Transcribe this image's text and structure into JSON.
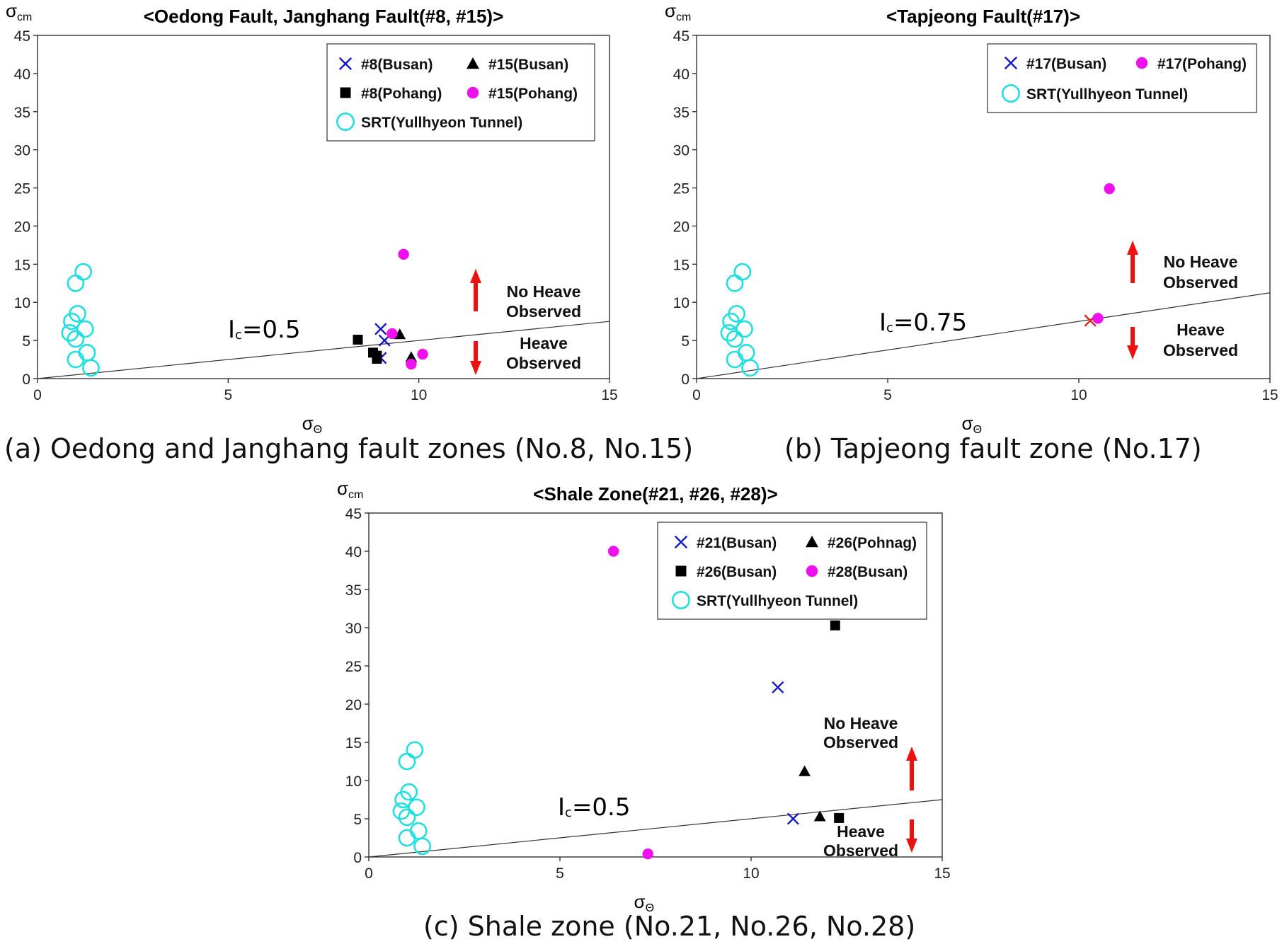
{
  "captions": [
    "(a) Oedong and Janghang fault zones (No.8, No.15)",
    "(b) Tapjeong fault zone (No.17)",
    "(c) Shale zone (No.21, No.26, No.28)"
  ],
  "colors": {
    "blue": "#1515c8",
    "black": "#000000",
    "magenta": "#ee11ee",
    "cyan": "#22dede",
    "red": "#ee1111",
    "cross_red": "#dd2222"
  },
  "chart_data": [
    {
      "type": "scatter",
      "title": "<Oedong Fault, Janghang Fault(#8, #15)>",
      "xlabel": "σ",
      "xlabel_sub": "Θ",
      "ylabel": "σ",
      "ylabel_sub": "cm",
      "xlim": [
        0,
        15
      ],
      "ylim": [
        0,
        45
      ],
      "xticks": [
        0,
        5,
        10,
        15
      ],
      "yticks": [
        0,
        5,
        10,
        15,
        20,
        25,
        30,
        35,
        40,
        45
      ],
      "legend": "top-right",
      "legend_columns": 2,
      "series": [
        {
          "name": "#8(Busan)",
          "marker": "x",
          "color": "#1515c8",
          "x": [
            9.0,
            9.1,
            9.0
          ],
          "y": [
            6.5,
            5.0,
            2.7
          ]
        },
        {
          "name": "#15(Busan)",
          "marker": "triangle",
          "color": "#000000",
          "x": [
            9.5,
            9.8
          ],
          "y": [
            5.8,
            2.8
          ]
        },
        {
          "name": "#8(Pohang)",
          "marker": "square",
          "color": "#000000",
          "x": [
            8.4,
            8.8,
            8.9,
            8.9
          ],
          "y": [
            5.1,
            3.4,
            3.0,
            2.6
          ]
        },
        {
          "name": "#15(Pohang)",
          "marker": "circle",
          "color": "#ee11ee",
          "x": [
            9.6,
            9.3,
            10.1,
            9.8
          ],
          "y": [
            16.3,
            5.9,
            3.2,
            1.9
          ]
        },
        {
          "name": "SRT(Yullhyeon Tunnel)",
          "marker": "open-circle",
          "color": "#22dede",
          "x": [
            1.2,
            1.0,
            1.05,
            0.9,
            0.85,
            1.25,
            1.0,
            1.0,
            1.3,
            1.4
          ],
          "y": [
            14.0,
            12.5,
            8.5,
            7.5,
            6.0,
            6.5,
            5.2,
            2.5,
            3.4,
            1.4
          ]
        }
      ],
      "reference_line": {
        "label": "I",
        "label_sub": "c",
        "label_value": "=0.5",
        "slope": 0.5
      },
      "annotations": {
        "above_label_1": "No Heave",
        "above_label_2": "Observed",
        "below_label_1": "Heave",
        "below_label_2": "Observed"
      }
    },
    {
      "type": "scatter",
      "title": "<Tapjeong Fault(#17)>",
      "xlabel": "σ",
      "xlabel_sub": "Θ",
      "ylabel": "σ",
      "ylabel_sub": "cm",
      "xlim": [
        0,
        15
      ],
      "ylim": [
        0,
        45
      ],
      "xticks": [
        0,
        5,
        10,
        15
      ],
      "yticks": [
        0,
        5,
        10,
        15,
        20,
        25,
        30,
        35,
        40,
        45
      ],
      "legend": "top-right",
      "legend_columns": 2,
      "series": [
        {
          "name": "#17(Busan)",
          "marker": "x",
          "color": "#1515c8",
          "point_color": "#dd2222",
          "x": [
            10.3
          ],
          "y": [
            7.6
          ]
        },
        {
          "name": "#17(Pohang)",
          "marker": "circle",
          "color": "#ee11ee",
          "x": [
            10.8,
            10.5
          ],
          "y": [
            24.9,
            7.9
          ]
        },
        {
          "name": "SRT(Yullhyeon Tunnel)",
          "marker": "open-circle",
          "color": "#22dede",
          "x": [
            1.2,
            1.0,
            1.05,
            0.9,
            0.85,
            1.25,
            1.0,
            1.0,
            1.3,
            1.4
          ],
          "y": [
            14.0,
            12.5,
            8.5,
            7.5,
            6.0,
            6.5,
            5.2,
            2.5,
            3.4,
            1.4
          ]
        }
      ],
      "reference_line": {
        "label": "I",
        "label_sub": "c",
        "label_value": "=0.75",
        "slope": 0.75
      },
      "annotations": {
        "above_label_1": "No Heave",
        "above_label_2": "Observed",
        "below_label_1": "Heave",
        "below_label_2": "Observed"
      }
    },
    {
      "type": "scatter",
      "title": "<Shale Zone(#21, #26, #28)>",
      "xlabel": "σ",
      "xlabel_sub": "Θ",
      "ylabel": "σ",
      "ylabel_sub": "cm",
      "xlim": [
        0,
        15
      ],
      "ylim": [
        0,
        45
      ],
      "xticks": [
        0,
        5,
        10,
        15
      ],
      "yticks": [
        0,
        5,
        10,
        15,
        20,
        25,
        30,
        35,
        40,
        45
      ],
      "legend": "top-right",
      "legend_columns": 2,
      "series": [
        {
          "name": "#21(Busan)",
          "marker": "x",
          "color": "#1515c8",
          "x": [
            10.7,
            11.1
          ],
          "y": [
            22.2,
            5.0
          ]
        },
        {
          "name": "#26(Pohnag)",
          "marker": "triangle",
          "color": "#000000",
          "x": [
            11.4,
            11.8
          ],
          "y": [
            11.2,
            5.3
          ]
        },
        {
          "name": "#26(Busan)",
          "marker": "square",
          "color": "#000000",
          "x": [
            12.2,
            12.3
          ],
          "y": [
            30.3,
            5.1
          ]
        },
        {
          "name": "#28(Busan)",
          "marker": "circle",
          "color": "#ee11ee",
          "x": [
            6.4,
            7.3
          ],
          "y": [
            40.0,
            0.4
          ]
        },
        {
          "name": "SRT(Yullhyeon Tunnel)",
          "marker": "open-circle",
          "color": "#22dede",
          "x": [
            1.2,
            1.0,
            1.05,
            0.9,
            0.85,
            1.25,
            1.0,
            1.0,
            1.3,
            1.4
          ],
          "y": [
            14.0,
            12.5,
            8.5,
            7.5,
            6.0,
            6.5,
            5.2,
            2.5,
            3.4,
            1.4
          ]
        }
      ],
      "reference_line": {
        "label": "I",
        "label_sub": "c",
        "label_value": "=0.5",
        "slope": 0.5
      },
      "annotations": {
        "above_label_1": "No Heave",
        "above_label_2": "Observed",
        "below_label_1": "Heave",
        "below_label_2": "Observed"
      }
    }
  ]
}
